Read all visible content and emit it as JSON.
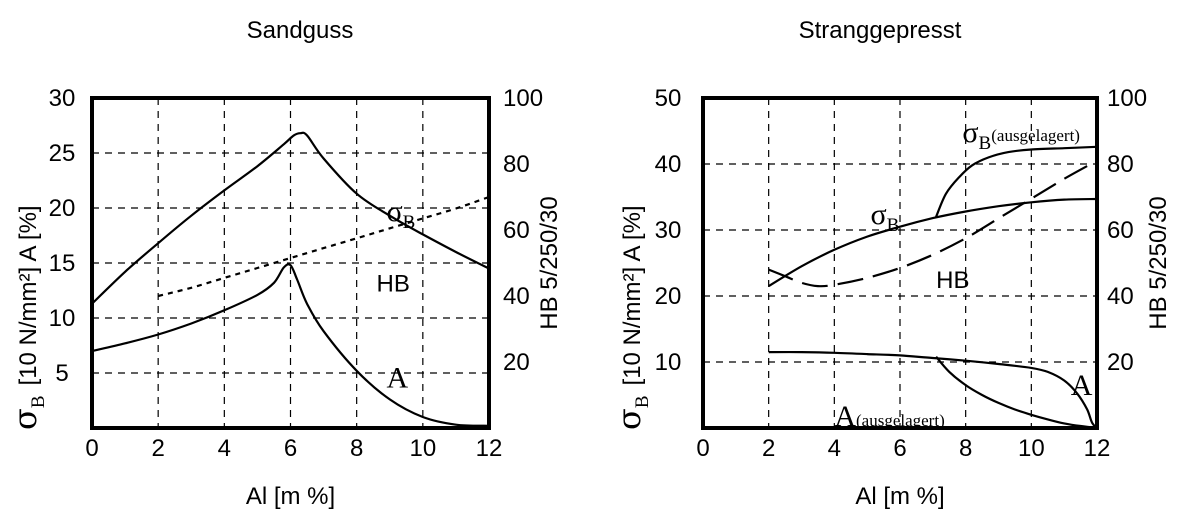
{
  "chart_data": [
    {
      "type": "line",
      "title": "Sandguss",
      "xlabel": "Al [m %]",
      "ylabel_left": {
        "symbol": "σ",
        "sub": "B",
        "text": "[10 N/mm²] A [%]"
      },
      "ylabel_right": "HB 5/250/30",
      "xlim": [
        0,
        12
      ],
      "ylim_left": [
        0,
        30
      ],
      "ylim_right": [
        0,
        100
      ],
      "x_ticks": [
        "0",
        "2",
        "4",
        "6",
        "8",
        "10",
        "12"
      ],
      "y_ticks_left": [
        "5",
        "10",
        "15",
        "20",
        "25",
        "30"
      ],
      "y_ticks_right": [
        "20",
        "40",
        "60",
        "80",
        "100"
      ],
      "grid": true,
      "series": [
        {
          "name": "σB",
          "axis": "left",
          "style": "solid",
          "x": [
            0,
            1,
            2,
            3,
            4,
            5,
            5.8,
            6.1,
            6.3,
            6.5,
            7,
            8,
            9,
            10,
            11,
            12
          ],
          "y": [
            11.3,
            14.2,
            16.8,
            19.3,
            21.6,
            23.8,
            25.8,
            26.6,
            26.8,
            26.6,
            24.5,
            21.3,
            19.3,
            17.6,
            16.0,
            14.5
          ]
        },
        {
          "name": "HB",
          "axis": "right",
          "style": "dotted",
          "x": [
            2,
            3,
            4,
            5,
            6,
            7,
            8,
            9,
            10,
            11,
            12
          ],
          "y": [
            40,
            42.5,
            45.5,
            48.5,
            51.5,
            54.5,
            57.5,
            60.5,
            63.5,
            66.5,
            70
          ]
        },
        {
          "name": "A",
          "axis": "left",
          "style": "solid",
          "x": [
            0,
            1,
            2,
            3,
            4,
            5,
            5.5,
            5.8,
            6.0,
            6.2,
            6.5,
            7,
            8,
            9,
            10,
            11,
            12
          ],
          "y": [
            7.0,
            7.7,
            8.5,
            9.5,
            10.7,
            12.1,
            13.2,
            14.6,
            14.8,
            13.5,
            11.3,
            8.8,
            5.2,
            2.6,
            1.0,
            0.3,
            0.2
          ]
        }
      ],
      "annotations": [
        {
          "text": "σ",
          "sub": "B",
          "x": 8.9,
          "y": 18.8
        },
        {
          "text": "HB",
          "x": 8.6,
          "y": 12.4
        },
        {
          "text": "A",
          "x": 8.9,
          "y": 3.7
        }
      ]
    },
    {
      "type": "line",
      "title": "Stranggepresst",
      "xlabel": "Al [m %]",
      "ylabel_left": {
        "symbol": "σ",
        "sub": "B",
        "text": "[10 N/mm²] A [%]"
      },
      "ylabel_right": "HB 5/250/30",
      "xlim": [
        0,
        12
      ],
      "ylim_left": [
        0,
        50
      ],
      "ylim_right": [
        0,
        100
      ],
      "x_ticks": [
        "0",
        "2",
        "4",
        "6",
        "8",
        "10",
        "12"
      ],
      "y_ticks_left": [
        "10",
        "20",
        "30",
        "40",
        "50"
      ],
      "y_ticks_right": [
        "20",
        "40",
        "60",
        "80",
        "100"
      ],
      "grid": true,
      "series": [
        {
          "name": "σB",
          "axis": "left",
          "style": "solid",
          "x": [
            2,
            3,
            4,
            5,
            6,
            7,
            8,
            9,
            10,
            11,
            12
          ],
          "y": [
            21.5,
            24.5,
            27.0,
            29.0,
            30.5,
            31.8,
            32.8,
            33.6,
            34.2,
            34.6,
            34.7
          ]
        },
        {
          "name": "σB (ausgelagert)",
          "axis": "left",
          "style": "solid",
          "x": [
            7.1,
            7.4,
            7.8,
            8.2,
            8.7,
            9.3,
            10,
            11,
            12
          ],
          "y": [
            32.0,
            35.5,
            38.0,
            39.8,
            41.0,
            41.8,
            42.2,
            42.4,
            42.6
          ]
        },
        {
          "name": "HB",
          "axis": "right",
          "style": "dashed",
          "x": [
            2,
            2.5,
            3,
            3.5,
            4,
            5,
            6,
            7,
            8,
            9,
            10,
            11,
            12
          ],
          "y": [
            48,
            46,
            44,
            43,
            43.4,
            45.5,
            48.5,
            52.5,
            57.5,
            63.5,
            69.5,
            75.5,
            81
          ]
        },
        {
          "name": "A",
          "axis": "left",
          "style": "solid",
          "x": [
            2,
            3,
            4,
            5,
            6,
            7,
            8,
            9,
            10,
            10.5,
            11,
            11.4,
            11.7,
            11.85,
            12
          ],
          "y": [
            11.5,
            11.5,
            11.4,
            11.2,
            11.0,
            10.6,
            10.2,
            9.7,
            9.1,
            8.5,
            7.2,
            5.2,
            2.8,
            0.8,
            0
          ]
        },
        {
          "name": "A (ausgelagert)",
          "axis": "left",
          "style": "solid",
          "x": [
            7.1,
            7.5,
            8,
            8.5,
            9,
            9.5,
            10,
            10.5,
            11,
            11.5,
            12
          ],
          "y": [
            10.8,
            8.5,
            6.5,
            5.0,
            3.8,
            2.8,
            2.0,
            1.3,
            0.7,
            0.3,
            0
          ]
        }
      ],
      "annotations": [
        {
          "text": "σ",
          "sub": "B",
          "x": 5.1,
          "y": 30.9
        },
        {
          "text": "σ",
          "sub": "B",
          "sub2": "(ausgelagert)",
          "x": 7.9,
          "y": 43.3
        },
        {
          "text": "HB",
          "x": 7.1,
          "y": 21.2
        },
        {
          "text": "A",
          "x": 11.2,
          "y": 5.0
        },
        {
          "text": "A",
          "sub2": "(ausgelagert)",
          "x": 4.0,
          "y": 0.3
        }
      ]
    }
  ]
}
